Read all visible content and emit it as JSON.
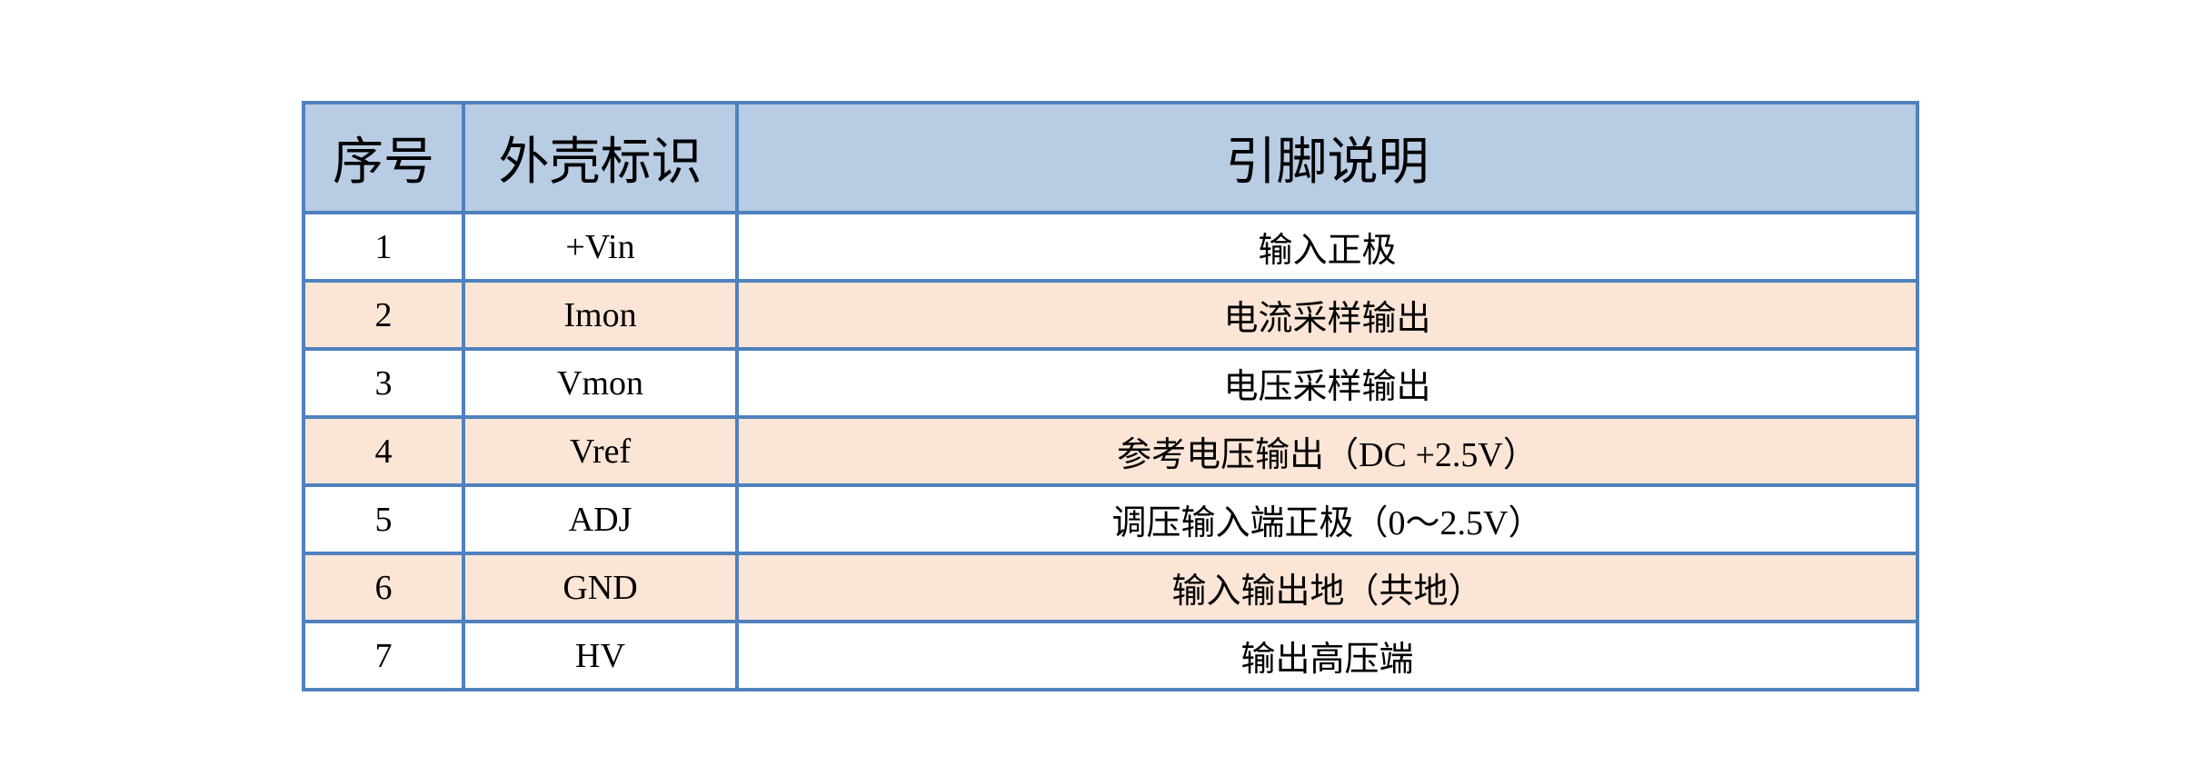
{
  "table": {
    "headers": [
      "序号",
      "外壳标识",
      "引脚说明"
    ],
    "rows": [
      [
        "1",
        "+Vin",
        "输入正极"
      ],
      [
        "2",
        "Imon",
        "电流采样输出"
      ],
      [
        "3",
        "Vmon",
        "电压采样输出"
      ],
      [
        "4",
        "Vref",
        "参考电压输出（DC +2.5V）"
      ],
      [
        "5",
        "ADJ",
        "调压输入端正极（0～2.5V）"
      ],
      [
        "6",
        "GND",
        "输入输出地（共地）"
      ],
      [
        "7",
        "HV",
        "输出高压端"
      ]
    ],
    "colors": {
      "border": "#4f81bd",
      "header_bg": "#b8cce4",
      "alt_row_bg": "#fbe5d6"
    }
  }
}
